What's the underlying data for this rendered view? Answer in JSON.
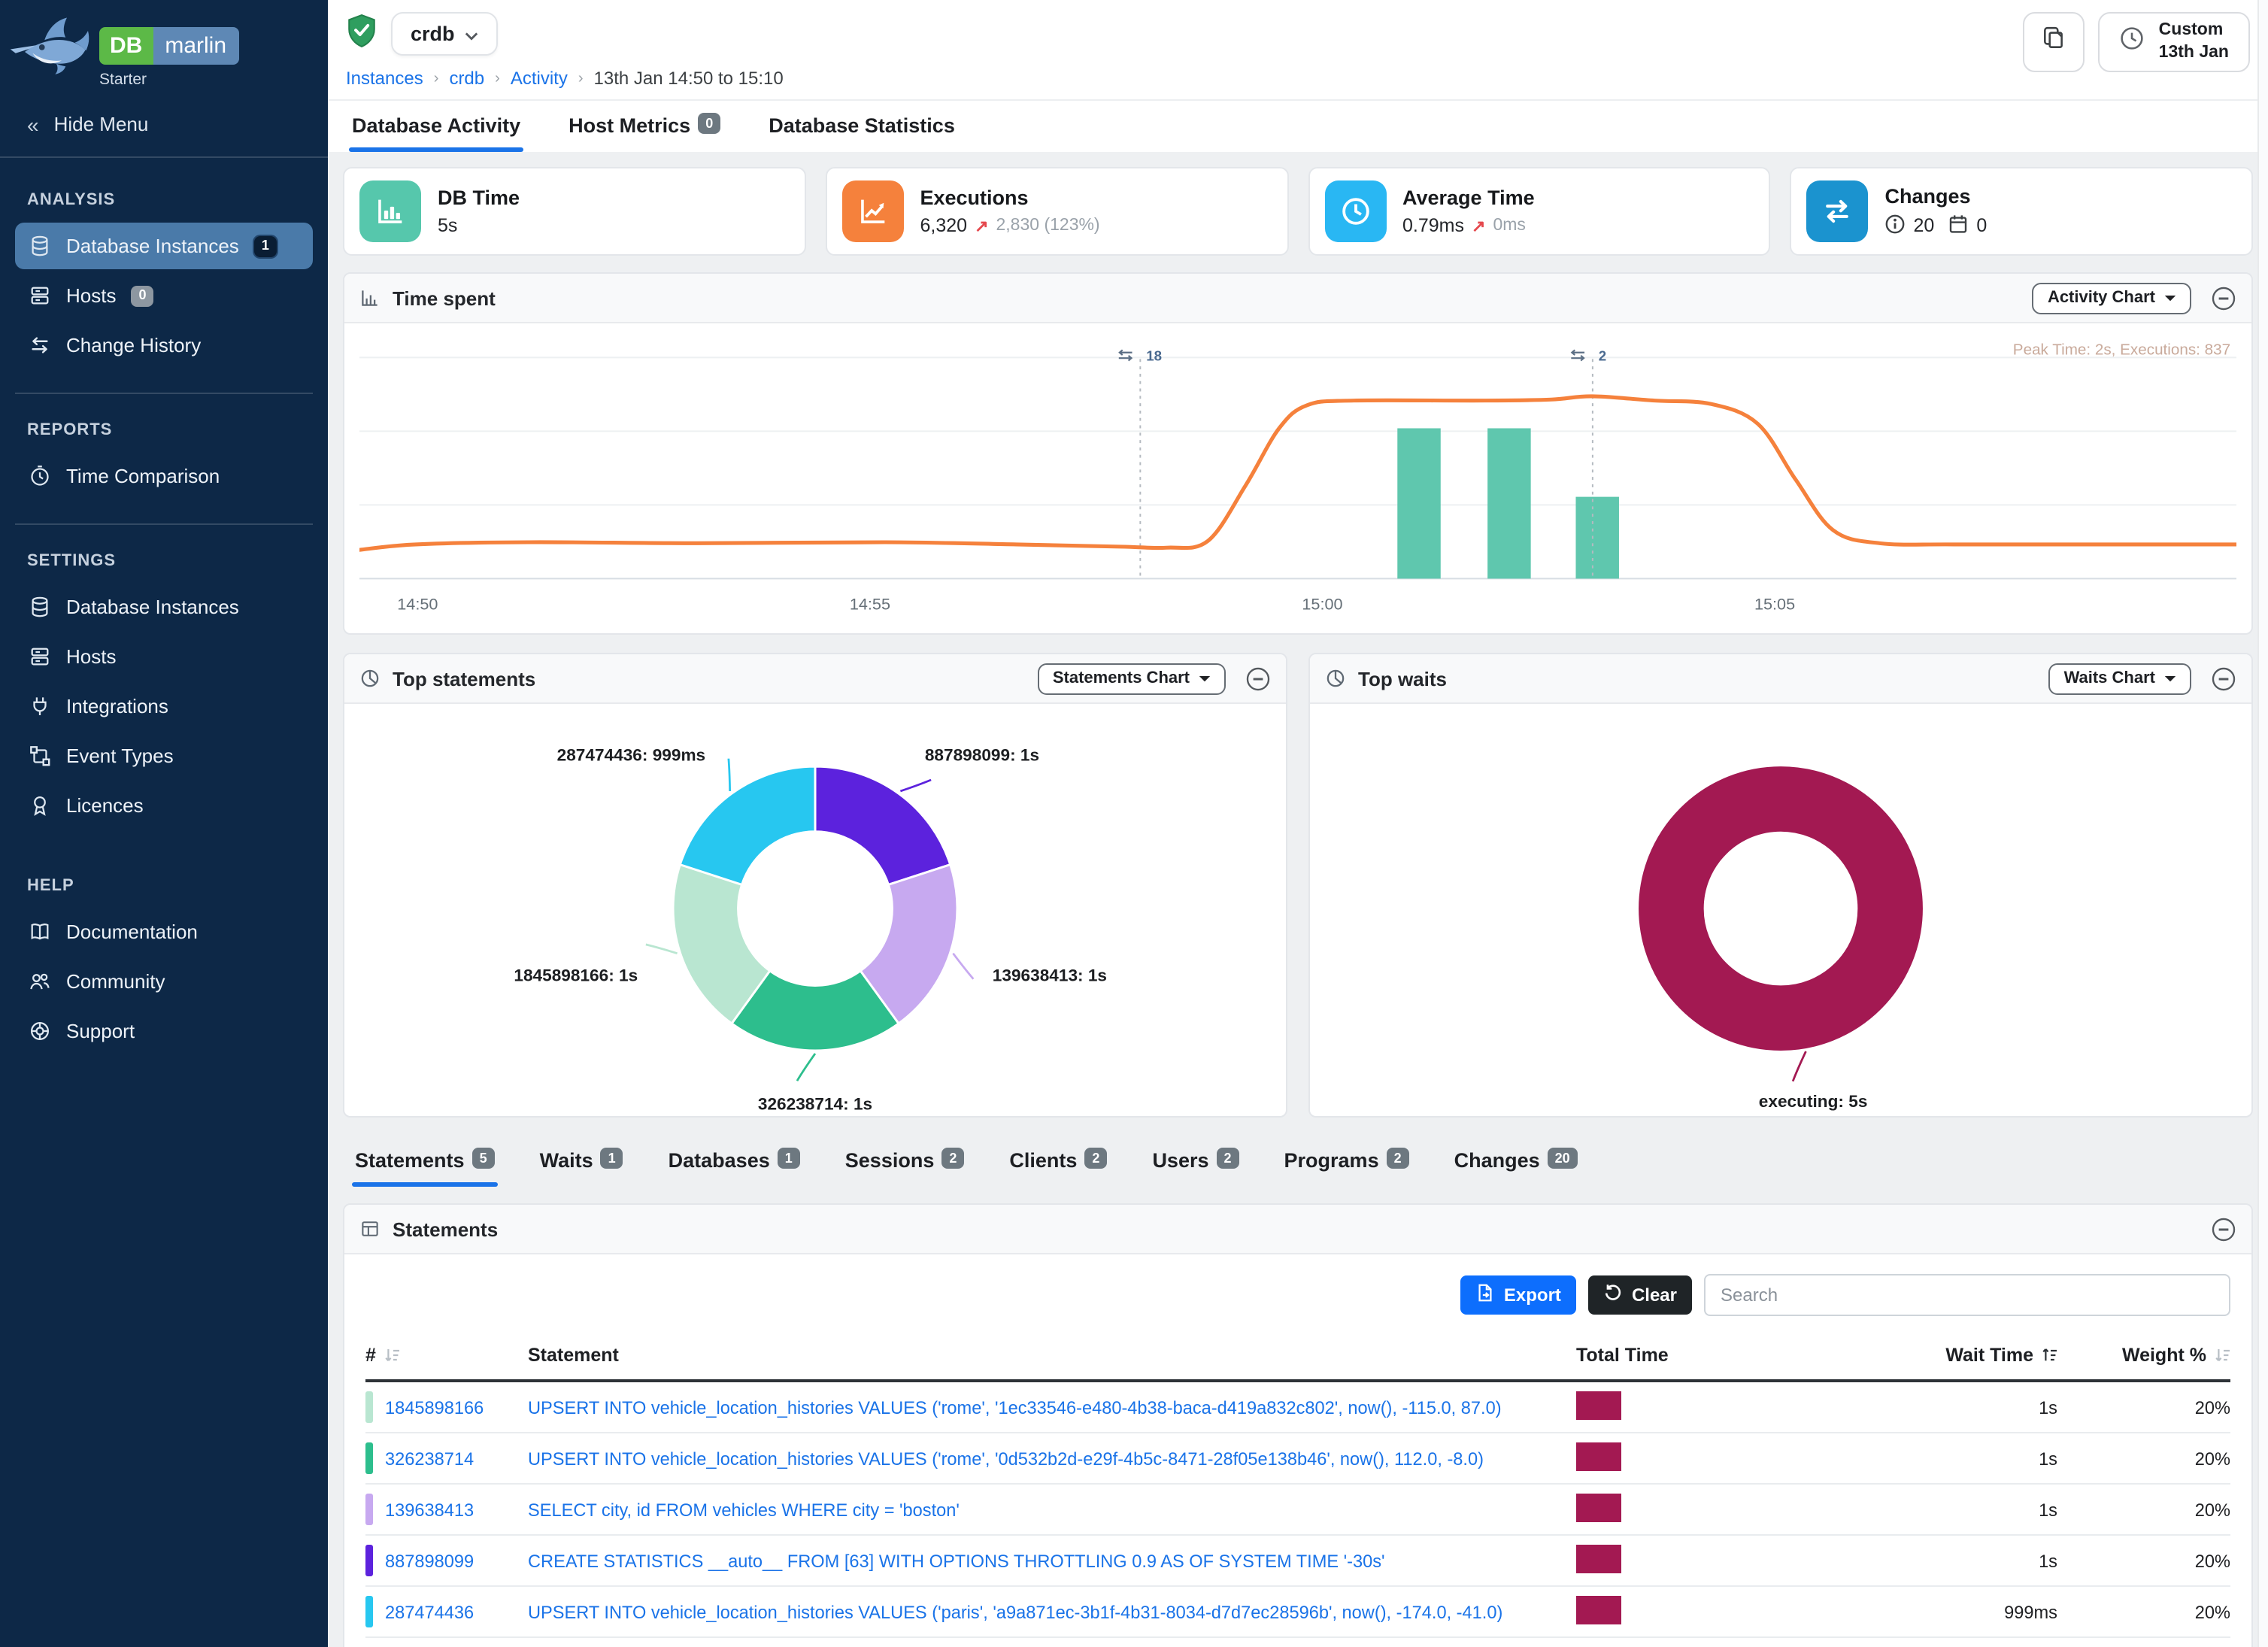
{
  "app": {
    "brand_db": "DB",
    "brand_marlin": "marlin",
    "edition": "Starter"
  },
  "sidebar": {
    "hide_menu": "Hide Menu",
    "sections": [
      {
        "heading": "ANALYSIS",
        "items": [
          {
            "label": "Database Instances",
            "icon": "database",
            "badge": "1",
            "badge_style": "dark",
            "active": true
          },
          {
            "label": "Hosts",
            "icon": "server",
            "badge": "0",
            "badge_style": "gray"
          },
          {
            "label": "Change History",
            "icon": "swap"
          }
        ]
      },
      {
        "heading": "REPORTS",
        "items": [
          {
            "label": "Time Comparison",
            "icon": "timecompare"
          }
        ]
      },
      {
        "heading": "SETTINGS",
        "items": [
          {
            "label": "Database Instances",
            "icon": "database"
          },
          {
            "label": "Hosts",
            "icon": "server"
          },
          {
            "label": "Integrations",
            "icon": "plug"
          },
          {
            "label": "Event Types",
            "icon": "event"
          },
          {
            "label": "Licences",
            "icon": "licence"
          }
        ]
      },
      {
        "heading": "HELP",
        "items": [
          {
            "label": "Documentation",
            "icon": "book"
          },
          {
            "label": "Community",
            "icon": "people"
          },
          {
            "label": "Support",
            "icon": "lifering"
          }
        ]
      }
    ]
  },
  "header": {
    "instance": "crdb",
    "breadcrumbs": [
      "Instances",
      "crdb",
      "Activity"
    ],
    "breadcrumb_current": "13th Jan 14:50 to 15:10",
    "time_button": {
      "line1": "Custom",
      "line2": "13th Jan"
    }
  },
  "main_tabs": [
    {
      "label": "Database Activity",
      "active": true
    },
    {
      "label": "Host Metrics",
      "badge": "0"
    },
    {
      "label": "Database Statistics"
    }
  ],
  "cards": {
    "db_time": {
      "title": "DB Time",
      "value": "5s",
      "color": "#56c7ac"
    },
    "executions": {
      "title": "Executions",
      "value": "6,320",
      "delta": "2,830 (123%)",
      "color": "#f5813c"
    },
    "avg_time": {
      "title": "Average Time",
      "value": "0.79ms",
      "delta": "0ms",
      "color": "#29b7f3"
    },
    "changes": {
      "title": "Changes",
      "info_count": "20",
      "event_count": "0",
      "color": "#1b93cf"
    }
  },
  "time_spent": {
    "title": "Time spent",
    "chart_button": "Activity Chart",
    "peak_note": "Peak Time: 2s, Executions: 837",
    "chart_data": {
      "type": "line+bar",
      "x_labels": [
        {
          "label": "14:50",
          "x": 0.031
        },
        {
          "label": "14:55",
          "x": 0.272
        },
        {
          "label": "15:00",
          "x": 0.513
        },
        {
          "label": "15:05",
          "x": 0.754
        }
      ],
      "line": {
        "name": "DB Time",
        "color": "#f5813c",
        "points": [
          [
            0,
            0.13
          ],
          [
            0.03,
            0.155
          ],
          [
            0.09,
            0.165
          ],
          [
            0.18,
            0.16
          ],
          [
            0.28,
            0.165
          ],
          [
            0.35,
            0.155
          ],
          [
            0.405,
            0.145
          ],
          [
            0.43,
            0.14
          ],
          [
            0.452,
            0.17
          ],
          [
            0.472,
            0.42
          ],
          [
            0.49,
            0.68
          ],
          [
            0.505,
            0.785
          ],
          [
            0.53,
            0.805
          ],
          [
            0.6,
            0.805
          ],
          [
            0.635,
            0.81
          ],
          [
            0.657,
            0.825
          ],
          [
            0.69,
            0.805
          ],
          [
            0.72,
            0.79
          ],
          [
            0.745,
            0.7
          ],
          [
            0.765,
            0.45
          ],
          [
            0.785,
            0.22
          ],
          [
            0.81,
            0.16
          ],
          [
            0.85,
            0.155
          ],
          [
            0.93,
            0.155
          ],
          [
            1,
            0.155
          ]
        ]
      },
      "bars": {
        "name": "Executions",
        "color": "#5fc7ae",
        "width": 0.023,
        "points": [
          {
            "x": 0.553,
            "h": 0.68
          },
          {
            "x": 0.601,
            "h": 0.68
          },
          {
            "x": 0.648,
            "h": 0.37
          }
        ]
      },
      "annotations": [
        {
          "x": 0.416,
          "label": "18"
        },
        {
          "x": 0.657,
          "label": "2"
        }
      ]
    }
  },
  "top_statements": {
    "title": "Top statements",
    "chart_button": "Statements Chart",
    "chart_data": {
      "type": "donut",
      "slices": [
        {
          "label": "887898099",
          "value": "1s",
          "frac": 0.2,
          "color": "#5c22dd"
        },
        {
          "label": "139638413",
          "value": "1s",
          "frac": 0.2,
          "color": "#c7a9f0"
        },
        {
          "label": "326238714",
          "value": "1s",
          "frac": 0.2,
          "color": "#2dbe8d"
        },
        {
          "label": "1845898166",
          "value": "1s",
          "frac": 0.2,
          "color": "#b9e6d1"
        },
        {
          "label": "287474436",
          "value": "999ms",
          "frac": 0.2,
          "color": "#27c7f0"
        }
      ]
    }
  },
  "top_waits": {
    "title": "Top waits",
    "chart_button": "Waits Chart",
    "chart_data": {
      "type": "donut",
      "slices": [
        {
          "label": "executing",
          "value": "5s",
          "frac": 1,
          "color": "#a31952",
          "label_angle": 170
        }
      ]
    }
  },
  "lower_tabs": [
    {
      "label": "Statements",
      "badge": "5",
      "active": true
    },
    {
      "label": "Waits",
      "badge": "1"
    },
    {
      "label": "Databases",
      "badge": "1"
    },
    {
      "label": "Sessions",
      "badge": "2"
    },
    {
      "label": "Clients",
      "badge": "2"
    },
    {
      "label": "Users",
      "badge": "2"
    },
    {
      "label": "Programs",
      "badge": "2"
    },
    {
      "label": "Changes",
      "badge": "20"
    }
  ],
  "statements_table": {
    "title": "Statements",
    "export_label": "Export",
    "clear_label": "Clear",
    "search_placeholder": "Search",
    "columns": [
      {
        "label": "#",
        "sort": "inactive"
      },
      {
        "label": "Statement"
      },
      {
        "label": "Total Time"
      },
      {
        "label": "Wait Time",
        "sort": "asc",
        "align": "right"
      },
      {
        "label": "Weight %",
        "sort": "inactive",
        "align": "right"
      }
    ],
    "rows": [
      {
        "id": "1845898166",
        "chip": "#b9e6d1",
        "statement": "UPSERT INTO vehicle_location_histories VALUES ('rome', '1ec33546-e480-4b38-baca-d419a832c802', now(), -115.0, 87.0)",
        "total_color": "#a31952",
        "wait": "1s",
        "weight": "20%"
      },
      {
        "id": "326238714",
        "chip": "#2dbe8d",
        "statement": "UPSERT INTO vehicle_location_histories VALUES ('rome', '0d532b2d-e29f-4b5c-8471-28f05e138b46', now(), 112.0, -8.0)",
        "total_color": "#a31952",
        "wait": "1s",
        "weight": "20%"
      },
      {
        "id": "139638413",
        "chip": "#c7a9f0",
        "statement": "SELECT city, id FROM vehicles WHERE city = 'boston'",
        "total_color": "#a31952",
        "wait": "1s",
        "weight": "20%"
      },
      {
        "id": "887898099",
        "chip": "#5c22dd",
        "statement": "CREATE STATISTICS __auto__ FROM [63] WITH OPTIONS THROTTLING 0.9 AS OF SYSTEM TIME '-30s'",
        "total_color": "#a31952",
        "wait": "1s",
        "weight": "20%"
      },
      {
        "id": "287474436",
        "chip": "#27c7f0",
        "statement": "UPSERT INTO vehicle_location_histories VALUES ('paris', 'a9a871ec-3b1f-4b31-8034-d7d7ec28596b', now(), -174.0, -41.0)",
        "total_color": "#a31952",
        "wait": "999ms",
        "weight": "20%"
      }
    ]
  }
}
